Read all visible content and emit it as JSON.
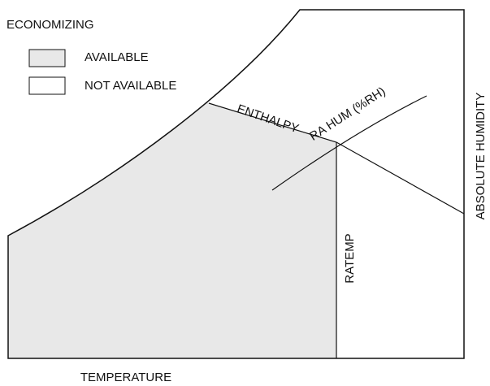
{
  "title": "ECONOMIZING",
  "legend": [
    {
      "label": "AVAILABLE"
    },
    {
      "label": "NOT AVAILABLE"
    }
  ],
  "lines": {
    "enthalpy": "ENTHALPY",
    "ra_hum": "RA HUM (%RH)",
    "ratemp": "RATEMP"
  },
  "axes": {
    "y": "ABSOLUTE HUMIDITY",
    "x": "TEMPERATURE"
  }
}
